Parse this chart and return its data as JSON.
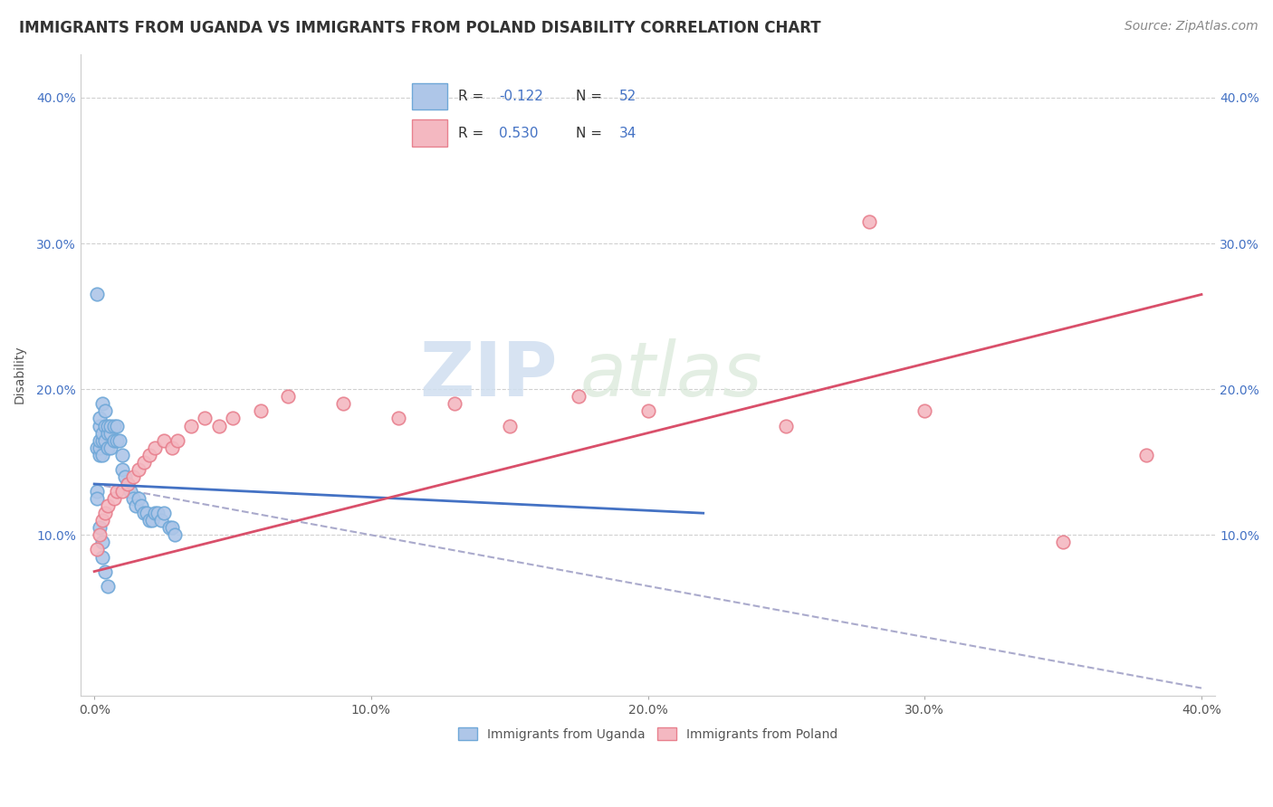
{
  "title": "IMMIGRANTS FROM UGANDA VS IMMIGRANTS FROM POLAND DISABILITY CORRELATION CHART",
  "source": "Source: ZipAtlas.com",
  "ylabel": "Disability",
  "xlim": [
    -0.005,
    0.405
  ],
  "ylim": [
    -0.01,
    0.43
  ],
  "xticks": [
    0.0,
    0.1,
    0.2,
    0.3,
    0.4
  ],
  "yticks": [
    0.1,
    0.2,
    0.3,
    0.4
  ],
  "xticklabels": [
    "0.0%",
    "10.0%",
    "20.0%",
    "30.0%",
    "40.0%"
  ],
  "yticklabels_left": [
    "10.0%",
    "20.0%",
    "30.0%",
    "40.0%"
  ],
  "yticklabels_right": [
    "10.0%",
    "20.0%",
    "30.0%",
    "40.0%"
  ],
  "uganda_color": "#aec6e8",
  "poland_color": "#f4b8c1",
  "uganda_edge": "#6fa8d8",
  "poland_edge": "#e8808e",
  "uganda_line_color": "#4472c4",
  "poland_line_color": "#d94f6a",
  "dashed_line_color": "#aaaacc",
  "watermark_zip": "ZIP",
  "watermark_atlas": "atlas",
  "background_color": "#ffffff",
  "grid_color": "#d0d0d0",
  "title_fontsize": 12,
  "axis_label_fontsize": 10,
  "tick_fontsize": 10,
  "legend_fontsize": 11,
  "source_fontsize": 10,
  "uganda_x": [
    0.001,
    0.001,
    0.001,
    0.002,
    0.002,
    0.002,
    0.002,
    0.002,
    0.003,
    0.003,
    0.003,
    0.003,
    0.004,
    0.004,
    0.004,
    0.005,
    0.005,
    0.005,
    0.006,
    0.006,
    0.006,
    0.007,
    0.007,
    0.008,
    0.008,
    0.009,
    0.01,
    0.01,
    0.011,
    0.012,
    0.013,
    0.014,
    0.015,
    0.016,
    0.017,
    0.018,
    0.019,
    0.02,
    0.021,
    0.022,
    0.023,
    0.024,
    0.025,
    0.027,
    0.028,
    0.029,
    0.001,
    0.002,
    0.003,
    0.003,
    0.004,
    0.005
  ],
  "uganda_y": [
    0.13,
    0.125,
    0.16,
    0.155,
    0.16,
    0.165,
    0.175,
    0.18,
    0.155,
    0.165,
    0.17,
    0.19,
    0.165,
    0.175,
    0.185,
    0.16,
    0.17,
    0.175,
    0.16,
    0.17,
    0.175,
    0.165,
    0.175,
    0.165,
    0.175,
    0.165,
    0.155,
    0.145,
    0.14,
    0.135,
    0.13,
    0.125,
    0.12,
    0.125,
    0.12,
    0.115,
    0.115,
    0.11,
    0.11,
    0.115,
    0.115,
    0.11,
    0.115,
    0.105,
    0.105,
    0.1,
    0.265,
    0.105,
    0.095,
    0.085,
    0.075,
    0.065
  ],
  "poland_x": [
    0.001,
    0.002,
    0.003,
    0.004,
    0.005,
    0.007,
    0.008,
    0.01,
    0.012,
    0.014,
    0.016,
    0.018,
    0.02,
    0.022,
    0.025,
    0.028,
    0.03,
    0.035,
    0.04,
    0.045,
    0.05,
    0.06,
    0.07,
    0.09,
    0.11,
    0.13,
    0.15,
    0.175,
    0.2,
    0.25,
    0.28,
    0.3,
    0.35,
    0.38
  ],
  "poland_y": [
    0.09,
    0.1,
    0.11,
    0.115,
    0.12,
    0.125,
    0.13,
    0.13,
    0.135,
    0.14,
    0.145,
    0.15,
    0.155,
    0.16,
    0.165,
    0.16,
    0.165,
    0.175,
    0.18,
    0.175,
    0.18,
    0.185,
    0.195,
    0.19,
    0.18,
    0.19,
    0.175,
    0.195,
    0.185,
    0.175,
    0.315,
    0.185,
    0.095,
    0.155
  ],
  "uganda_line_x0": 0.0,
  "uganda_line_x1": 0.22,
  "uganda_line_y0": 0.135,
  "uganda_line_y1": 0.115,
  "poland_line_x0": 0.0,
  "poland_line_x1": 0.4,
  "poland_line_y0": 0.075,
  "poland_line_y1": 0.265,
  "dash_line_x0": 0.0,
  "dash_line_x1": 0.4,
  "dash_line_y0": 0.135,
  "dash_line_y1": -0.005
}
